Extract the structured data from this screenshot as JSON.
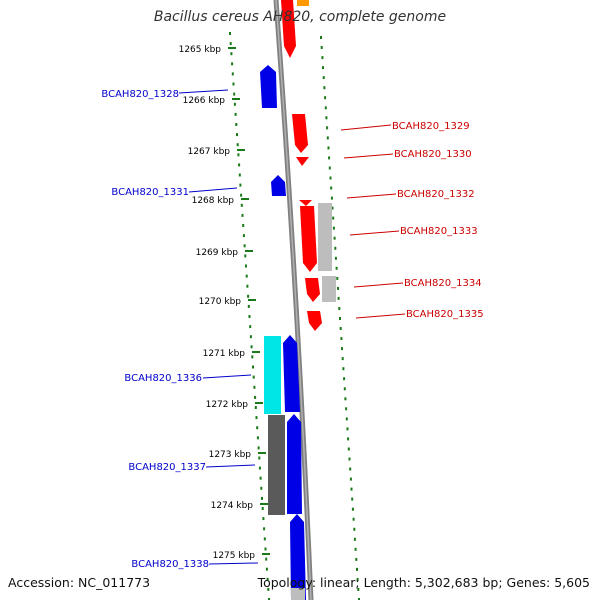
{
  "title": "Bacillus cereus AH820, complete genome",
  "footer": {
    "accession": "Accession: NC_011773",
    "summary": "Topology: linear; Length: 5,302,683 bp; Genes: 5,605"
  },
  "ticks": [
    "1265 kbp",
    "1266 kbp",
    "1267 kbp",
    "1268 kbp",
    "1269 kbp",
    "1270 kbp",
    "1271 kbp",
    "1272 kbp",
    "1273 kbp",
    "1274 kbp",
    "1275 kbp"
  ],
  "gene_labels_left": [
    "BCAH820_1328",
    "BCAH820_1331",
    "BCAH820_1336",
    "BCAH820_1337",
    "BCAH820_1338"
  ],
  "gene_labels_right": [
    "BCAH820_1329",
    "BCAH820_1330",
    "BCAH820_1332",
    "BCAH820_1333",
    "BCAH820_1334",
    "BCAH820_1335"
  ],
  "colors": {
    "forward": "#ff0000",
    "reverse": "#0000e6",
    "left_label": "#0000cc",
    "right_label": "#cc0000",
    "cyan": "#00e6e6",
    "gray_light": "#bdbdbd",
    "gray_dark": "#5a5a5a",
    "orange": "#ff9900",
    "backbone": "#808080",
    "dots": "#1a7a1a"
  }
}
